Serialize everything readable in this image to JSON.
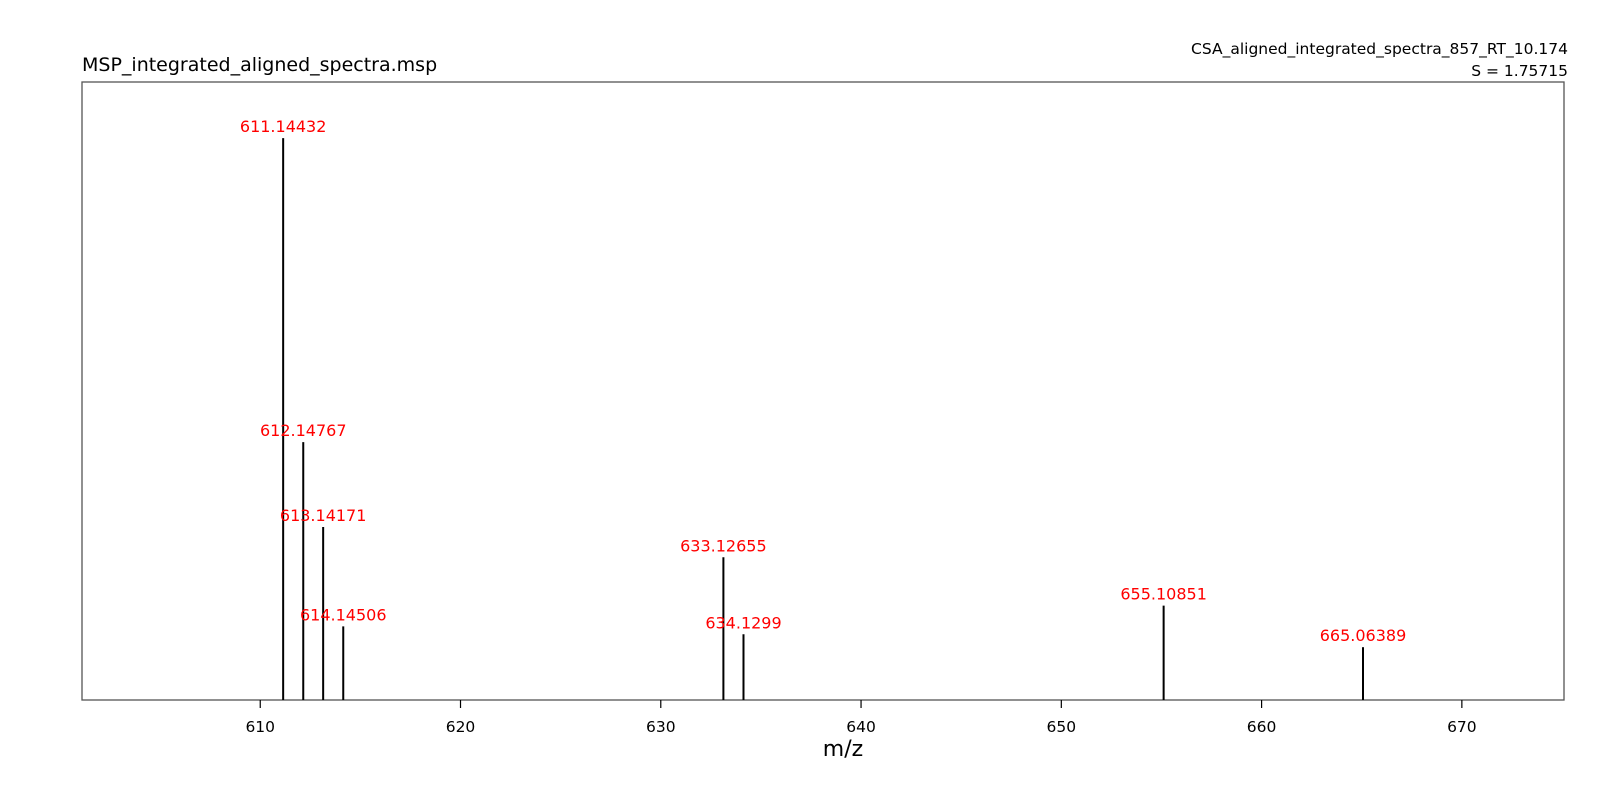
{
  "chart_data": {
    "type": "bar",
    "title": "MSP_integrated_aligned_spectra.msp",
    "subtitle_lines": [
      "CSA_aligned_integrated_spectra_857_RT_10.174",
      "S = 1.75715"
    ],
    "xlabel": "m/z",
    "ylabel": "",
    "xlim": [
      601.1,
      675.1
    ],
    "ylim": [
      0,
      1.1
    ],
    "xticks": [
      610,
      620,
      630,
      640,
      650,
      660,
      670
    ],
    "grid": false,
    "peaks": [
      {
        "mz": 611.14432,
        "label": "611.14432",
        "intensity": 1.0
      },
      {
        "mz": 612.14767,
        "label": "612.14767",
        "intensity": 0.459
      },
      {
        "mz": 613.14171,
        "label": "613.14171",
        "intensity": 0.308
      },
      {
        "mz": 614.14506,
        "label": "614.14506",
        "intensity": 0.131
      },
      {
        "mz": 633.12655,
        "label": "633.12655",
        "intensity": 0.254
      },
      {
        "mz": 634.1299,
        "label": "634.1299",
        "intensity": 0.117
      },
      {
        "mz": 655.10851,
        "label": "655.10851",
        "intensity": 0.168
      },
      {
        "mz": 665.06389,
        "label": "665.06389",
        "intensity": 0.094
      }
    ],
    "colors": {
      "stem": "#000000",
      "label": "#ff0000",
      "frame": "#555555"
    }
  }
}
